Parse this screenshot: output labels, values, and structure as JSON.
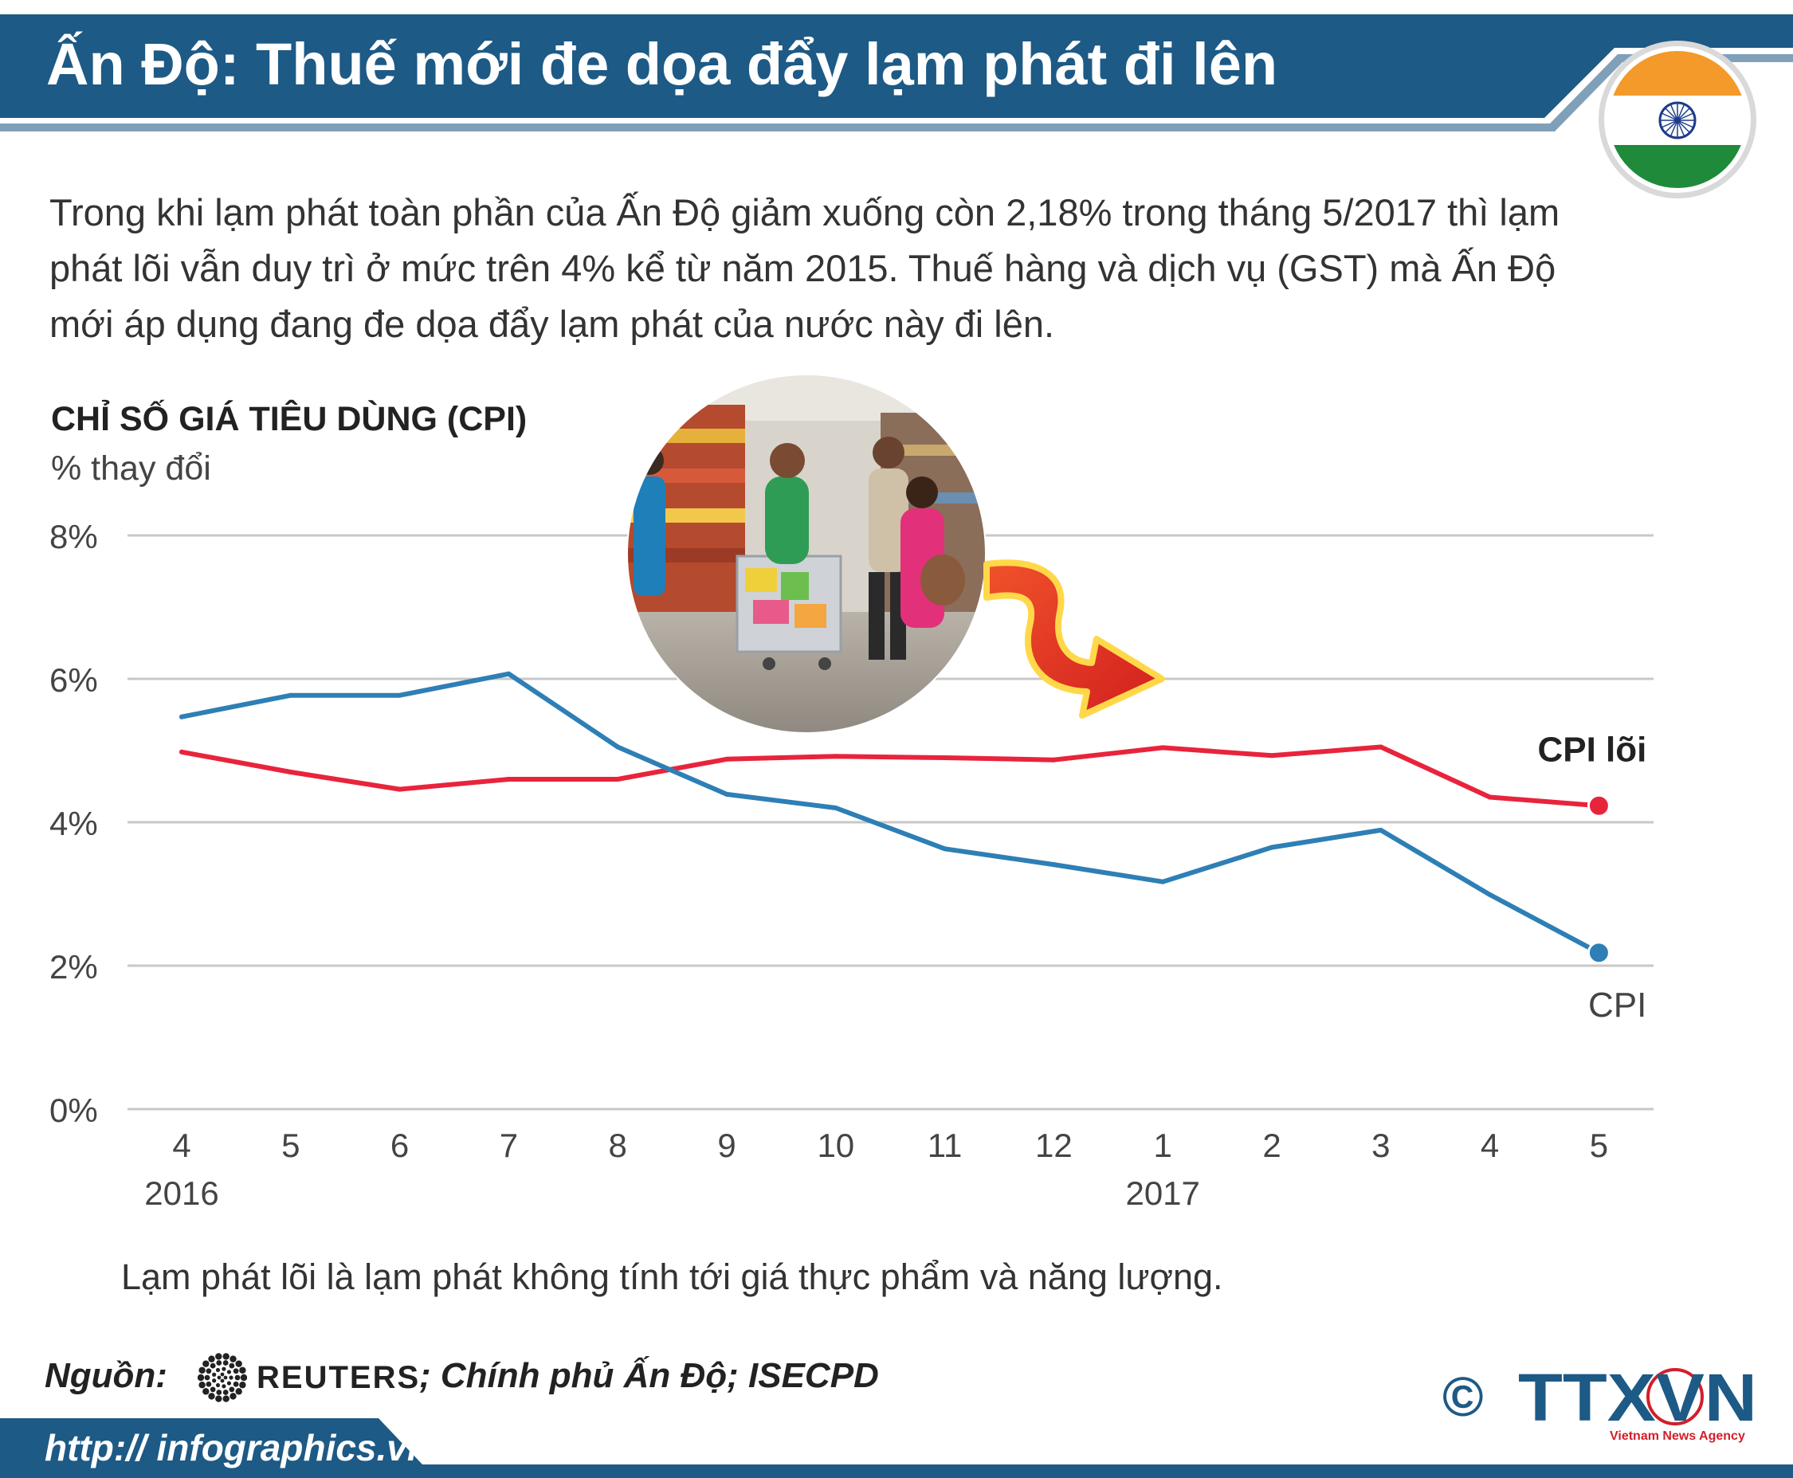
{
  "header": {
    "title": "Ấn Độ: Thuế mới đe dọa đẩy lạm phát đi lên",
    "bar_color": "#1d5a86",
    "accent_color": "#7fa0b8"
  },
  "intro": "Trong khi lạm phát toàn phần của Ấn Độ giảm xuống còn 2,18% trong tháng 5/2017 thì lạm phát lõi vẫn duy trì ở mức trên 4% kể từ năm 2015. Thuế hàng và dịch vụ (GST) mà Ấn Độ mới áp dụng đang đe dọa đẩy lạm phát của nước này đi lên.",
  "chart_data": {
    "type": "line",
    "title": "CHỈ SỐ GIÁ TIÊU DÙNG (CPI)",
    "ylabel": "% thay đổi",
    "xlabel": "",
    "ylim": [
      0,
      8
    ],
    "yticks": [
      0,
      2,
      4,
      6,
      8
    ],
    "ytick_labels": [
      "0%",
      "2%",
      "4%",
      "6%",
      "8%"
    ],
    "grid": true,
    "categories": [
      "4",
      "5",
      "6",
      "7",
      "8",
      "9",
      "10",
      "11",
      "12",
      "1",
      "2",
      "3",
      "4",
      "5"
    ],
    "year_labels": [
      {
        "index": 0,
        "label": "2016"
      },
      {
        "index": 9,
        "label": "2017"
      }
    ],
    "series": [
      {
        "name": "CPI lõi",
        "color": "#e8243c",
        "values": [
          4.98,
          4.7,
          4.46,
          4.6,
          4.6,
          4.88,
          4.92,
          4.9,
          4.87,
          5.04,
          4.93,
          5.05,
          4.35,
          4.23
        ]
      },
      {
        "name": "CPI",
        "color": "#2e7fb5",
        "values": [
          5.47,
          5.77,
          5.77,
          6.07,
          5.05,
          4.39,
          4.2,
          3.63,
          3.41,
          3.17,
          3.65,
          3.89,
          2.99,
          2.18
        ]
      }
    ]
  },
  "note": "Lạm phát lõi là lạm phát không tính tới giá thực phẩm và năng lượng.",
  "source": {
    "label": "Nguồn:",
    "reuters": "REUTERS",
    "rest": "; Chính phủ Ấn Độ; ISECPD"
  },
  "logo": {
    "copyright": "©",
    "name": "TTXVN",
    "tagline": "Vietnam News Agency"
  },
  "footer": {
    "url": "http:// infographics.vn"
  }
}
